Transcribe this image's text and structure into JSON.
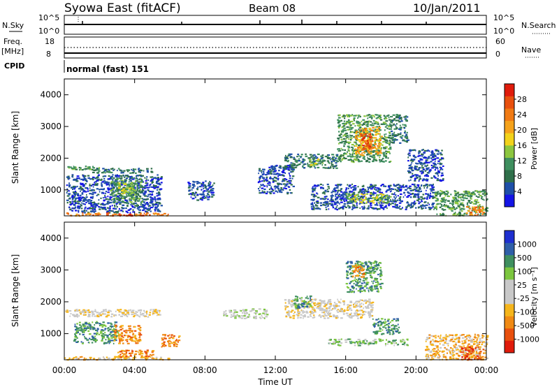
{
  "header": {
    "station": "Syowa East (fitACF)",
    "beam": "Beam 08",
    "date": "10/Jan/2011"
  },
  "summary": {
    "nsky_label": "N.Sky",
    "nsearch_label": "N.Search",
    "noise_left_ticks": [
      "10^5",
      "10^0"
    ],
    "noise_right_ticks": [
      "10^5",
      "10^0"
    ],
    "freq_label": "Freq.",
    "freq_unit": "[MHz]",
    "freq_ticks": [
      "18",
      "8"
    ],
    "nave_label": "Nave",
    "nave_ticks": [
      "60",
      "0"
    ],
    "cpid_label": "CPID",
    "cpid_value": "normal (fast) 151"
  },
  "axes": {
    "x_label": "Time UT",
    "x_ticks": [
      "00:00",
      "04:00",
      "08:00",
      "12:00",
      "16:00",
      "20:00",
      "00:00"
    ],
    "y_label": "Slant Range [km]",
    "y_ticks": [
      "1000",
      "2000",
      "3000",
      "4000"
    ]
  },
  "colors": {
    "power": [
      "#1414e6",
      "#1e4fa8",
      "#2f6f4a",
      "#3f8f5f",
      "#8cc63f",
      "#f2d21b",
      "#f5a21b",
      "#f07a14",
      "#e8500e",
      "#e01b0b"
    ],
    "velocity": [
      "#e01b0b",
      "#e8500e",
      "#f08a14",
      "#f5b51b",
      "#c8c8c8",
      "#c8c8c8",
      "#7cc63f",
      "#3f8f5f",
      "#2f5fa8",
      "#1e2fd0"
    ]
  },
  "colorbars": {
    "power": {
      "label": "Power [dB]",
      "ticks": [
        "4",
        "8",
        "12",
        "16",
        "20",
        "24",
        "28"
      ]
    },
    "velocity": {
      "label": "Velocity [m s⁻¹]",
      "ticks": [
        "-1000",
        "-500",
        "-100",
        "-25",
        "25",
        "100",
        "500",
        "1000"
      ]
    }
  },
  "chart_data": [
    {
      "type": "heatmap",
      "name": "power",
      "x_range": [
        "00:00",
        "24:00"
      ],
      "ylim": [
        180,
        4500
      ],
      "regions": [
        {
          "t0": 0.0,
          "t1": 2.0,
          "r0": 1650,
          "r1": 1780,
          "level": 3
        },
        {
          "t0": 1.5,
          "t1": 5.0,
          "r0": 1550,
          "r1": 1700,
          "level": 2
        },
        {
          "t0": 0.1,
          "t1": 5.5,
          "r0": 300,
          "r1": 1500,
          "level": 1
        },
        {
          "t0": 2.6,
          "t1": 4.4,
          "r0": 600,
          "r1": 1400,
          "level": 3
        },
        {
          "t0": 3.0,
          "t1": 4.0,
          "r0": 900,
          "r1": 1250,
          "level": 4
        },
        {
          "t0": 0.0,
          "t1": 6.0,
          "r0": 200,
          "r1": 290,
          "level": 7
        },
        {
          "t0": 3.0,
          "t1": 4.5,
          "r0": 200,
          "r1": 260,
          "level": 9
        },
        {
          "t0": 7.0,
          "t1": 8.5,
          "r0": 700,
          "r1": 1300,
          "level": 1
        },
        {
          "t0": 12.5,
          "t1": 15.5,
          "r0": 1700,
          "r1": 2150,
          "level": 2
        },
        {
          "t0": 13.8,
          "t1": 14.8,
          "r0": 1800,
          "r1": 2000,
          "level": 4
        },
        {
          "t0": 11.0,
          "t1": 13.0,
          "r0": 900,
          "r1": 1800,
          "level": 1
        },
        {
          "t0": 15.5,
          "t1": 18.5,
          "r0": 1900,
          "r1": 3400,
          "level": 3
        },
        {
          "t0": 16.5,
          "t1": 18.0,
          "r0": 2100,
          "r1": 3000,
          "level": 6
        },
        {
          "t0": 16.8,
          "t1": 17.6,
          "r0": 2300,
          "r1": 2800,
          "level": 8
        },
        {
          "t0": 14.0,
          "t1": 21.0,
          "r0": 400,
          "r1": 1200,
          "level": 1
        },
        {
          "t0": 16.0,
          "t1": 18.5,
          "r0": 600,
          "r1": 900,
          "level": 4
        },
        {
          "t0": 18.5,
          "t1": 19.5,
          "r0": 2500,
          "r1": 3400,
          "level": 2
        },
        {
          "t0": 19.5,
          "t1": 21.5,
          "r0": 1300,
          "r1": 2300,
          "level": 1
        },
        {
          "t0": 21.0,
          "t1": 24.0,
          "r0": 200,
          "r1": 1000,
          "level": 3
        },
        {
          "t0": 22.8,
          "t1": 23.8,
          "r0": 200,
          "r1": 500,
          "level": 7
        }
      ]
    },
    {
      "type": "heatmap",
      "name": "velocity",
      "x_range": [
        "00:00",
        "24:00"
      ],
      "ylim": [
        180,
        4500
      ],
      "regions": [
        {
          "t0": 0.0,
          "t1": 5.5,
          "r0": 1550,
          "r1": 1780,
          "level": 4
        },
        {
          "t0": 0.5,
          "t1": 3.0,
          "r0": 700,
          "r1": 1400,
          "level": 7
        },
        {
          "t0": 2.8,
          "t1": 4.3,
          "r0": 700,
          "r1": 1300,
          "level": 2
        },
        {
          "t0": 0.0,
          "t1": 6.0,
          "r0": 200,
          "r1": 300,
          "level": 3
        },
        {
          "t0": 3.0,
          "t1": 5.0,
          "r0": 250,
          "r1": 500,
          "level": 2
        },
        {
          "t0": 5.5,
          "t1": 6.5,
          "r0": 600,
          "r1": 1000,
          "level": 2
        },
        {
          "t0": 9.0,
          "t1": 11.5,
          "r0": 1500,
          "r1": 1800,
          "level": 5
        },
        {
          "t0": 12.5,
          "t1": 17.5,
          "r0": 1500,
          "r1": 2100,
          "level": 4
        },
        {
          "t0": 13.0,
          "t1": 14.0,
          "r0": 1800,
          "r1": 2200,
          "level": 7
        },
        {
          "t0": 16.0,
          "t1": 18.0,
          "r0": 2300,
          "r1": 3300,
          "level": 7
        },
        {
          "t0": 16.3,
          "t1": 17.0,
          "r0": 2800,
          "r1": 3200,
          "level": 2
        },
        {
          "t0": 15.0,
          "t1": 19.5,
          "r0": 650,
          "r1": 850,
          "level": 6
        },
        {
          "t0": 17.5,
          "t1": 19.0,
          "r0": 1000,
          "r1": 1500,
          "level": 7
        },
        {
          "t0": 20.5,
          "t1": 24.0,
          "r0": 200,
          "r1": 1000,
          "level": 3
        },
        {
          "t0": 22.5,
          "t1": 23.8,
          "r0": 200,
          "r1": 600,
          "level": 1
        }
      ]
    }
  ]
}
